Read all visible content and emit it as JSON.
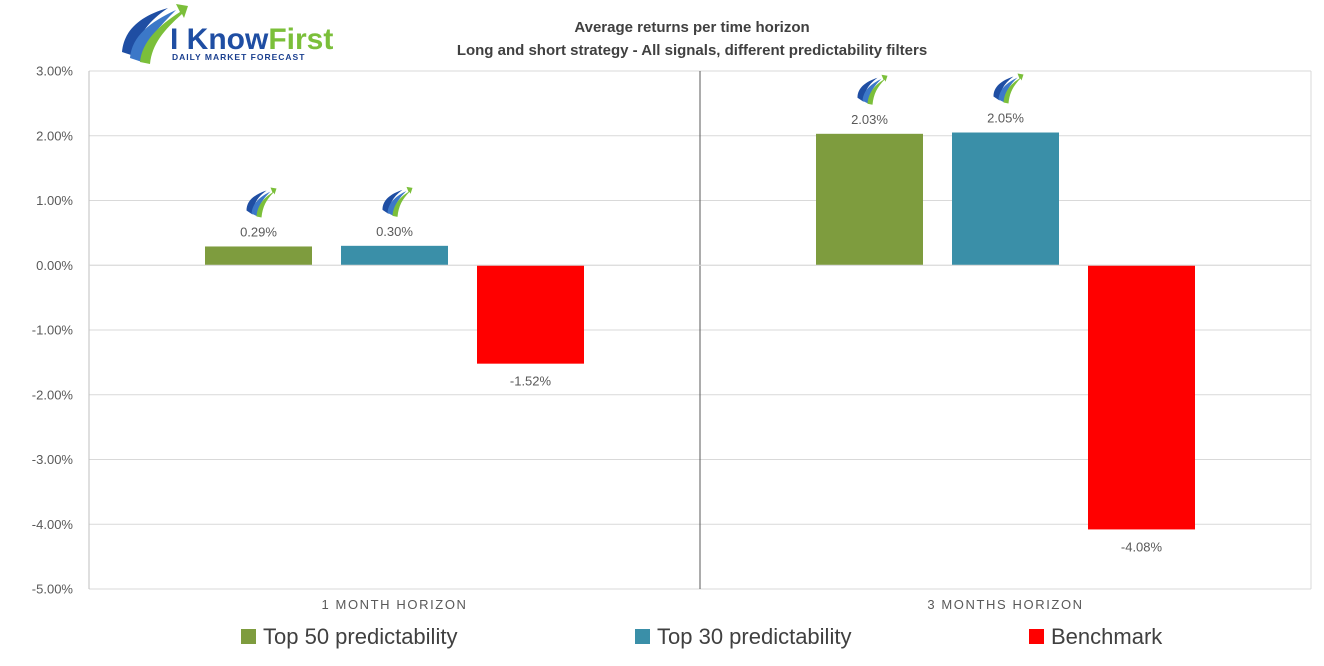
{
  "logo": {
    "brand_part1": "I Know",
    "brand_part2": "First",
    "tagline": "Daily Market Forecast",
    "brand_color": "#1f4ea3",
    "accent_color": "#7bbf3a"
  },
  "chart_data": {
    "type": "bar",
    "title": "Average returns per time horizon",
    "subtitle": "Long and short strategy - All signals, different predictability filters",
    "categories": [
      "1 MONTH HORIZON",
      "3 MONTHS HORIZON"
    ],
    "series": [
      {
        "name": "Top 50 predictability",
        "color": "#7e9c3e",
        "values": [
          0.29,
          2.03
        ],
        "labels": [
          "0.29%",
          "2.03%"
        ],
        "logo_marker": true
      },
      {
        "name": "Top 30 predictability",
        "color": "#3a8fa8",
        "values": [
          0.3,
          2.05
        ],
        "labels": [
          "0.30%",
          "2.05%"
        ],
        "logo_marker": true
      },
      {
        "name": "Benchmark",
        "color": "#ff0000",
        "values": [
          -1.52,
          -4.08
        ],
        "labels": [
          "-1.52%",
          "-4.08%"
        ],
        "logo_marker": false
      }
    ],
    "ylim": [
      -5,
      3
    ],
    "yticks": [
      3,
      2,
      1,
      0,
      -1,
      -2,
      -3,
      -4,
      -5
    ],
    "ytick_labels": [
      "3.00%",
      "2.00%",
      "1.00%",
      "0.00%",
      "-1.00%",
      "-2.00%",
      "-3.00%",
      "-4.00%",
      "-5.00%"
    ],
    "grid": true,
    "legend_position": "bottom"
  }
}
